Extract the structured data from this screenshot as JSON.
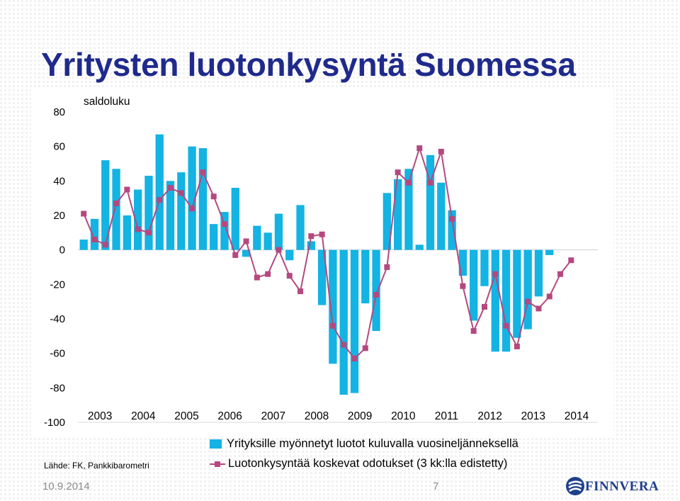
{
  "slide": {
    "title": "Yritysten luotonkysyntä Suomessa",
    "source": "Lähde: FK, Pankkibarometri",
    "date": "10.9.2014",
    "page_number": "7",
    "logo_text": "FINNVERA"
  },
  "colors": {
    "title": "#1f2a8c",
    "bars": "#13b3e3",
    "line": "#b5487f",
    "grid": "#d9d9d9",
    "logo": "#1f3f8c"
  },
  "chart_data": {
    "type": "bar",
    "ylabel": "saldoluku",
    "ylim": [
      -100,
      80
    ],
    "y_ticks": [
      80,
      60,
      40,
      20,
      0,
      -20,
      -40,
      -60,
      -80,
      -100
    ],
    "x_tick_labels": [
      "2003",
      "2004",
      "2005",
      "2006",
      "2007",
      "2008",
      "2009",
      "2010",
      "2011",
      "2012",
      "2013",
      "2014"
    ],
    "x_tick_years": [
      2003,
      2004,
      2005,
      2006,
      2007,
      2008,
      2009,
      2010,
      2011,
      2012,
      2013,
      2014
    ],
    "x_start": 2003,
    "periods_per_year": 4,
    "grid": false,
    "legend_position": "bottom",
    "series": [
      {
        "name": "Yrityksille myönnetyt luotot kuluvalla vuosineljänneksellä",
        "type": "bar",
        "values": [
          6,
          18,
          52,
          47,
          20,
          35,
          43,
          67,
          40,
          45,
          60,
          59,
          15,
          22,
          36,
          -4,
          14,
          10,
          21,
          -6,
          26,
          5,
          -32,
          -66,
          -84,
          -83,
          -31,
          -47,
          33,
          41,
          47,
          3,
          55,
          39,
          23,
          -15,
          -41,
          -21,
          -59,
          -59,
          -51,
          -46,
          -27,
          -3
        ]
      },
      {
        "name": "Luotonkysyntää koskevat odotukset (3 kk:lla edistetty)",
        "type": "line",
        "values": [
          21,
          6,
          3,
          27,
          35,
          12,
          10,
          29,
          36,
          33,
          24,
          45,
          31,
          15,
          -3,
          5,
          -16,
          -14,
          0,
          -15,
          -24,
          8,
          9,
          -44,
          -55,
          -63,
          -57,
          -26,
          -10,
          45,
          39,
          59,
          39,
          57,
          18,
          -21,
          -47,
          -33,
          -14,
          -44,
          -56,
          -30,
          -34,
          -27,
          -14,
          -6
        ]
      }
    ]
  }
}
